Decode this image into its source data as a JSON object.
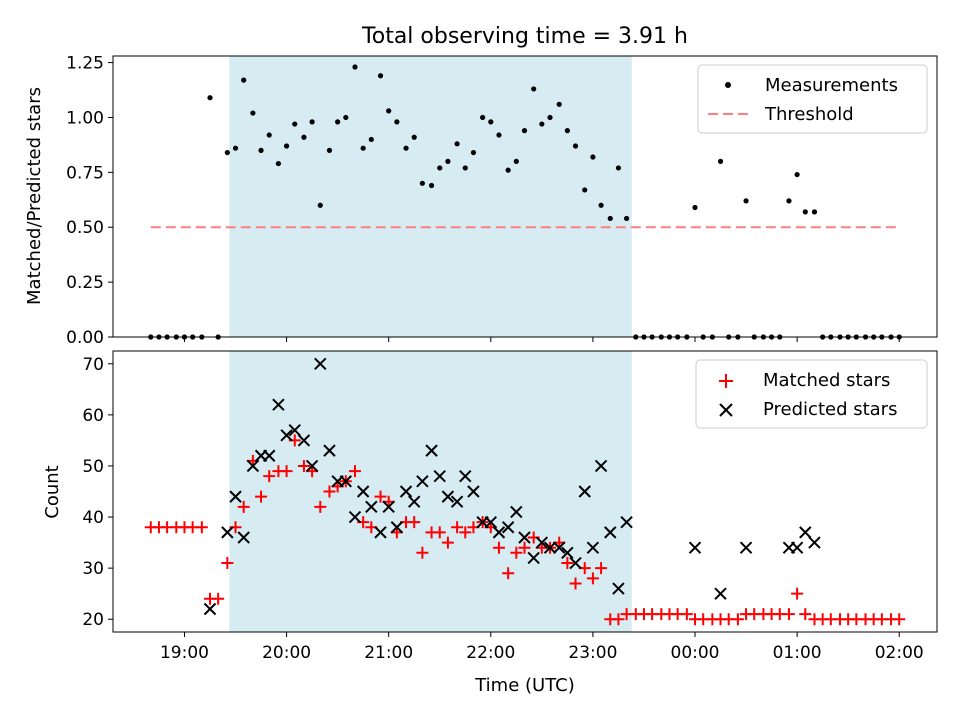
{
  "title": "Total observing time = 3.91 h",
  "xlabel": "Time (UTC)",
  "x_ticks": [
    "19:00",
    "20:00",
    "21:00",
    "22:00",
    "23:00",
    "00:00",
    "01:00",
    "02:00"
  ],
  "colors": {
    "shade": "#add8e6",
    "matched": "#ff0000",
    "predicted": "#000000",
    "threshold": "#ff7f7f"
  },
  "chart_data": [
    {
      "type": "scatter",
      "ylabel": "Matched/Predicted stars",
      "ylim": [
        0,
        1.28
      ],
      "y_ticks": [
        "0.00",
        "0.25",
        "0.50",
        "0.75",
        "1.00",
        "1.25"
      ],
      "x_unit": "hours since 00:00 UTC",
      "xlim": [
        -5.7,
        2.37
      ],
      "legend": {
        "placement": "top-right",
        "entries": [
          "Measurements",
          "Threshold"
        ]
      },
      "shaded_interval": [
        -4.56,
        -0.62
      ],
      "threshold": {
        "name": "Threshold",
        "y": 0.5,
        "x_range": [
          -5.33,
          2.0
        ]
      },
      "series": [
        {
          "name": "Measurements",
          "points": [
            [
              -5.33,
              0
            ],
            [
              -5.25,
              0
            ],
            [
              -5.17,
              0
            ],
            [
              -5.08,
              0
            ],
            [
              -5.0,
              0
            ],
            [
              -4.92,
              0
            ],
            [
              -4.83,
              0
            ],
            [
              -4.75,
              1.09
            ],
            [
              -4.67,
              0
            ],
            [
              -4.58,
              0.84
            ],
            [
              -4.5,
              0.86
            ],
            [
              -4.42,
              1.17
            ],
            [
              -4.33,
              1.02
            ],
            [
              -4.25,
              0.85
            ],
            [
              -4.17,
              0.92
            ],
            [
              -4.08,
              0.79
            ],
            [
              -4.0,
              0.87
            ],
            [
              -3.92,
              0.97
            ],
            [
              -3.83,
              0.91
            ],
            [
              -3.75,
              0.98
            ],
            [
              -3.67,
              0.6
            ],
            [
              -3.58,
              0.85
            ],
            [
              -3.5,
              0.98
            ],
            [
              -3.42,
              1.0
            ],
            [
              -3.33,
              1.23
            ],
            [
              -3.25,
              0.86
            ],
            [
              -3.17,
              0.9
            ],
            [
              -3.08,
              1.19
            ],
            [
              -3.0,
              1.03
            ],
            [
              -2.92,
              0.98
            ],
            [
              -2.83,
              0.86
            ],
            [
              -2.75,
              0.91
            ],
            [
              -2.67,
              0.7
            ],
            [
              -2.58,
              0.69
            ],
            [
              -2.5,
              0.77
            ],
            [
              -2.42,
              0.8
            ],
            [
              -2.33,
              0.88
            ],
            [
              -2.25,
              0.77
            ],
            [
              -2.17,
              0.84
            ],
            [
              -2.08,
              1.0
            ],
            [
              -2.0,
              0.98
            ],
            [
              -1.92,
              0.92
            ],
            [
              -1.83,
              0.76
            ],
            [
              -1.75,
              0.8
            ],
            [
              -1.67,
              0.94
            ],
            [
              -1.58,
              1.13
            ],
            [
              -1.5,
              0.97
            ],
            [
              -1.42,
              1.0
            ],
            [
              -1.33,
              1.06
            ],
            [
              -1.25,
              0.94
            ],
            [
              -1.17,
              0.87
            ],
            [
              -1.08,
              0.67
            ],
            [
              -1.0,
              0.82
            ],
            [
              -0.92,
              0.6
            ],
            [
              -0.83,
              0.54
            ],
            [
              -0.75,
              0.77
            ],
            [
              -0.67,
              0.54
            ],
            [
              -0.58,
              0
            ],
            [
              -0.5,
              0
            ],
            [
              -0.42,
              0
            ],
            [
              -0.33,
              0
            ],
            [
              -0.25,
              0
            ],
            [
              -0.17,
              0
            ],
            [
              -0.08,
              0
            ],
            [
              0.0,
              0.59
            ],
            [
              0.08,
              0
            ],
            [
              0.17,
              0
            ],
            [
              0.25,
              0.8
            ],
            [
              0.33,
              0
            ],
            [
              0.42,
              0
            ],
            [
              0.5,
              0.62
            ],
            [
              0.58,
              0
            ],
            [
              0.67,
              0
            ],
            [
              0.75,
              0
            ],
            [
              0.83,
              0
            ],
            [
              0.92,
              0.62
            ],
            [
              1.0,
              0.74
            ],
            [
              1.08,
              0.57
            ],
            [
              1.17,
              0.57
            ],
            [
              1.25,
              0
            ],
            [
              1.33,
              0
            ],
            [
              1.42,
              0
            ],
            [
              1.5,
              0
            ],
            [
              1.58,
              0
            ],
            [
              1.67,
              0
            ],
            [
              1.75,
              0
            ],
            [
              1.83,
              0
            ],
            [
              1.92,
              0
            ],
            [
              2.0,
              0
            ]
          ]
        }
      ]
    },
    {
      "type": "scatter",
      "ylabel": "Count",
      "ylim": [
        17.5,
        72.5
      ],
      "y_ticks": [
        "20",
        "30",
        "40",
        "50",
        "60",
        "70"
      ],
      "x_unit": "hours since 00:00 UTC",
      "xlim": [
        -5.7,
        2.37
      ],
      "legend": {
        "placement": "top-right",
        "entries": [
          "Matched stars",
          "Predicted stars"
        ]
      },
      "shaded_interval": [
        -4.56,
        -0.62
      ],
      "series": [
        {
          "name": "Matched stars",
          "marker": "+",
          "points": [
            [
              -5.33,
              38
            ],
            [
              -5.25,
              38
            ],
            [
              -5.17,
              38
            ],
            [
              -5.08,
              38
            ],
            [
              -5.0,
              38
            ],
            [
              -4.92,
              38
            ],
            [
              -4.83,
              38
            ],
            [
              -4.75,
              24
            ],
            [
              -4.67,
              24
            ],
            [
              -4.58,
              31
            ],
            [
              -4.5,
              38
            ],
            [
              -4.42,
              42
            ],
            [
              -4.33,
              51
            ],
            [
              -4.25,
              44
            ],
            [
              -4.17,
              48
            ],
            [
              -4.08,
              49
            ],
            [
              -4.0,
              49
            ],
            [
              -3.92,
              55
            ],
            [
              -3.83,
              50
            ],
            [
              -3.75,
              49
            ],
            [
              -3.67,
              42
            ],
            [
              -3.58,
              45
            ],
            [
              -3.5,
              46
            ],
            [
              -3.42,
              47
            ],
            [
              -3.33,
              49
            ],
            [
              -3.25,
              39
            ],
            [
              -3.17,
              38
            ],
            [
              -3.08,
              44
            ],
            [
              -3.0,
              43
            ],
            [
              -2.92,
              37
            ],
            [
              -2.83,
              39
            ],
            [
              -2.75,
              39
            ],
            [
              -2.67,
              33
            ],
            [
              -2.58,
              37
            ],
            [
              -2.5,
              37
            ],
            [
              -2.42,
              35
            ],
            [
              -2.33,
              38
            ],
            [
              -2.25,
              37
            ],
            [
              -2.17,
              38
            ],
            [
              -2.08,
              39
            ],
            [
              -2.0,
              38
            ],
            [
              -1.92,
              34
            ],
            [
              -1.83,
              29
            ],
            [
              -1.75,
              33
            ],
            [
              -1.67,
              34
            ],
            [
              -1.58,
              36
            ],
            [
              -1.5,
              34
            ],
            [
              -1.42,
              34
            ],
            [
              -1.33,
              35
            ],
            [
              -1.25,
              31
            ],
            [
              -1.17,
              27
            ],
            [
              -1.08,
              30
            ],
            [
              -1.0,
              28
            ],
            [
              -0.92,
              30
            ],
            [
              -0.83,
              20
            ],
            [
              -0.75,
              20
            ],
            [
              -0.67,
              21
            ],
            [
              -0.58,
              21
            ],
            [
              -0.5,
              21
            ],
            [
              -0.42,
              21
            ],
            [
              -0.33,
              21
            ],
            [
              -0.25,
              21
            ],
            [
              -0.17,
              21
            ],
            [
              -0.08,
              21
            ],
            [
              0.0,
              20
            ],
            [
              0.08,
              20
            ],
            [
              0.17,
              20
            ],
            [
              0.25,
              20
            ],
            [
              0.33,
              20
            ],
            [
              0.42,
              20
            ],
            [
              0.5,
              21
            ],
            [
              0.58,
              21
            ],
            [
              0.67,
              21
            ],
            [
              0.75,
              21
            ],
            [
              0.83,
              21
            ],
            [
              0.92,
              21
            ],
            [
              1.0,
              25
            ],
            [
              1.08,
              21
            ],
            [
              1.17,
              20
            ],
            [
              1.25,
              20
            ],
            [
              1.33,
              20
            ],
            [
              1.42,
              20
            ],
            [
              1.5,
              20
            ],
            [
              1.58,
              20
            ],
            [
              1.67,
              20
            ],
            [
              1.75,
              20
            ],
            [
              1.83,
              20
            ],
            [
              1.92,
              20
            ],
            [
              2.0,
              20
            ]
          ]
        },
        {
          "name": "Predicted stars",
          "marker": "x",
          "points": [
            [
              -4.75,
              22
            ],
            [
              -4.58,
              37
            ],
            [
              -4.5,
              44
            ],
            [
              -4.42,
              36
            ],
            [
              -4.33,
              50
            ],
            [
              -4.25,
              52
            ],
            [
              -4.17,
              52
            ],
            [
              -4.08,
              62
            ],
            [
              -4.0,
              56
            ],
            [
              -3.92,
              57
            ],
            [
              -3.83,
              55
            ],
            [
              -3.75,
              50
            ],
            [
              -3.67,
              70
            ],
            [
              -3.58,
              53
            ],
            [
              -3.5,
              47
            ],
            [
              -3.42,
              47
            ],
            [
              -3.33,
              40
            ],
            [
              -3.25,
              45
            ],
            [
              -3.17,
              42
            ],
            [
              -3.08,
              37
            ],
            [
              -3.0,
              42
            ],
            [
              -2.92,
              38
            ],
            [
              -2.83,
              45
            ],
            [
              -2.75,
              43
            ],
            [
              -2.67,
              47
            ],
            [
              -2.58,
              53
            ],
            [
              -2.5,
              48
            ],
            [
              -2.42,
              44
            ],
            [
              -2.33,
              43
            ],
            [
              -2.25,
              48
            ],
            [
              -2.17,
              45
            ],
            [
              -2.08,
              39
            ],
            [
              -2.0,
              39
            ],
            [
              -1.92,
              37
            ],
            [
              -1.83,
              38
            ],
            [
              -1.75,
              41
            ],
            [
              -1.67,
              36
            ],
            [
              -1.58,
              32
            ],
            [
              -1.5,
              35
            ],
            [
              -1.42,
              34
            ],
            [
              -1.33,
              34
            ],
            [
              -1.25,
              33
            ],
            [
              -1.17,
              31
            ],
            [
              -1.08,
              45
            ],
            [
              -1.0,
              34
            ],
            [
              -0.92,
              50
            ],
            [
              -0.83,
              37
            ],
            [
              -0.75,
              26
            ],
            [
              -0.67,
              39
            ],
            [
              0.0,
              34
            ],
            [
              0.25,
              25
            ],
            [
              0.5,
              34
            ],
            [
              0.92,
              34
            ],
            [
              1.0,
              34
            ],
            [
              1.08,
              37
            ],
            [
              1.17,
              35
            ]
          ]
        }
      ]
    }
  ]
}
